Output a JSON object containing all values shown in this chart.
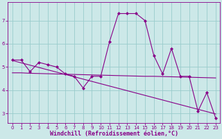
{
  "xlabel": "Windchill (Refroidissement éolien,°C)",
  "background_color": "#cce8e8",
  "grid_color": "#99cccc",
  "line_color": "#880088",
  "x_data": [
    0,
    1,
    2,
    3,
    4,
    5,
    6,
    7,
    8,
    9,
    10,
    11,
    12,
    13,
    14,
    15,
    16,
    17,
    18,
    19,
    20,
    21,
    22,
    23
  ],
  "y_main": [
    5.3,
    5.3,
    4.8,
    5.2,
    5.1,
    5.0,
    4.7,
    4.6,
    4.1,
    4.6,
    4.6,
    6.1,
    7.3,
    7.3,
    7.3,
    7.0,
    5.5,
    4.7,
    5.8,
    4.6,
    4.6,
    3.1,
    3.9,
    2.8
  ],
  "y_trend_flat": [
    4.75,
    4.75,
    4.73,
    4.72,
    4.71,
    4.7,
    4.69,
    4.68,
    4.67,
    4.66,
    4.65,
    4.64,
    4.63,
    4.62,
    4.61,
    4.6,
    4.6,
    4.59,
    4.58,
    4.57,
    4.56,
    4.55,
    4.54,
    4.53
  ],
  "y_trend_steep": [
    5.28,
    5.18,
    5.08,
    4.98,
    4.88,
    4.78,
    4.68,
    4.58,
    4.48,
    4.38,
    4.28,
    4.18,
    4.08,
    3.98,
    3.88,
    3.78,
    3.68,
    3.58,
    3.48,
    3.38,
    3.28,
    3.18,
    3.08,
    2.98
  ],
  "ylim": [
    2.6,
    7.8
  ],
  "xlim": [
    -0.5,
    23.5
  ],
  "yticks": [
    3,
    4,
    5,
    6,
    7
  ],
  "xticks": [
    0,
    1,
    2,
    3,
    4,
    5,
    6,
    7,
    8,
    9,
    10,
    11,
    12,
    13,
    14,
    15,
    16,
    17,
    18,
    19,
    20,
    21,
    22,
    23
  ],
  "tick_fontsize": 5.0,
  "xlabel_fontsize": 6.0,
  "marker": "D",
  "markersize": 2.0,
  "linewidth": 0.8
}
